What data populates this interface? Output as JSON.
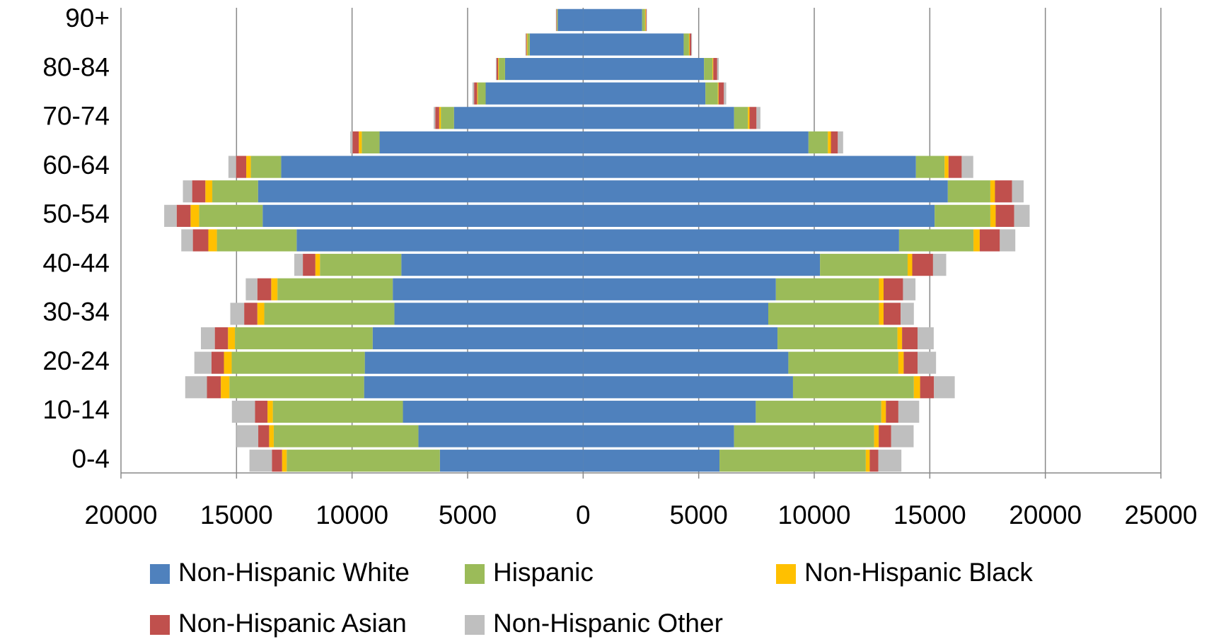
{
  "chart_data": {
    "type": "bar",
    "orientation": "horizontal",
    "stacked": true,
    "categories": [
      "0-4",
      null,
      "10-14",
      null,
      "20-24",
      null,
      "30-34",
      null,
      "40-44",
      null,
      "50-54",
      null,
      "60-64",
      null,
      "70-74",
      null,
      "80-84",
      null,
      "90+"
    ],
    "xlim": [
      -20000,
      25000
    ],
    "xticks": [
      {
        "value": -20000,
        "label": "20000"
      },
      {
        "value": -15000,
        "label": "15000"
      },
      {
        "value": -10000,
        "label": "10000"
      },
      {
        "value": -5000,
        "label": "5000"
      },
      0,
      5000,
      10000,
      15000,
      20000,
      25000
    ],
    "grid": true,
    "series": [
      {
        "name": "Non-Hispanic White",
        "color": "#4f81bd",
        "left": [
          -6200,
          -7130,
          -7800,
          -9480,
          -9450,
          -9110,
          -8170,
          -8240,
          -7870,
          -12400,
          -13870,
          -14070,
          -13070,
          -8810,
          -5590,
          -4220,
          -3380,
          -2310,
          -1100
        ],
        "right": [
          5900,
          6530,
          7470,
          9080,
          8880,
          8410,
          8010,
          8340,
          10250,
          13670,
          15210,
          15780,
          14400,
          9750,
          6530,
          5290,
          5230,
          4350,
          2550
        ]
      },
      {
        "name": "Hispanic",
        "color": "#9bbb59",
        "left": [
          -6630,
          -6260,
          -5630,
          -5830,
          -5760,
          -5960,
          -5630,
          -4990,
          -3520,
          -3450,
          -2750,
          -1980,
          -1310,
          -770,
          -570,
          -340,
          -270,
          -100,
          -30
        ],
        "right": [
          6330,
          6060,
          5430,
          5230,
          4760,
          5190,
          4790,
          4460,
          3790,
          3220,
          2410,
          1840,
          1240,
          840,
          600,
          540,
          370,
          230,
          130
        ]
      },
      {
        "name": "Non-Hispanic Black",
        "color": "#ffc000",
        "left": [
          -200,
          -200,
          -230,
          -370,
          -335,
          -300,
          -300,
          -270,
          -200,
          -370,
          -370,
          -300,
          -200,
          -130,
          -70,
          -30,
          -30,
          -30,
          -10
        ],
        "right": [
          170,
          200,
          200,
          270,
          230,
          200,
          200,
          200,
          200,
          270,
          230,
          200,
          170,
          130,
          70,
          30,
          30,
          30,
          30
        ]
      },
      {
        "name": "Non-Hispanic Asian",
        "color": "#c0504d",
        "left": [
          -440,
          -470,
          -540,
          -600,
          -540,
          -570,
          -570,
          -600,
          -540,
          -670,
          -600,
          -570,
          -440,
          -270,
          -170,
          -130,
          -70,
          -30,
          -20
        ],
        "right": [
          370,
          540,
          540,
          600,
          600,
          670,
          740,
          840,
          900,
          870,
          800,
          740,
          570,
          300,
          300,
          230,
          170,
          70,
          30
        ]
      },
      {
        "name": "Non-Hispanic Other",
        "color": "#bfbfbf",
        "left": [
          -970,
          -940,
          -1000,
          -940,
          -740,
          -600,
          -600,
          -500,
          -370,
          -500,
          -540,
          -400,
          -330,
          -100,
          -70,
          -70,
          -30,
          -30,
          -20
        ],
        "right": [
          1000,
          970,
          900,
          900,
          800,
          700,
          570,
          540,
          570,
          670,
          670,
          500,
          500,
          230,
          170,
          100,
          70,
          30,
          20
        ]
      }
    ]
  }
}
